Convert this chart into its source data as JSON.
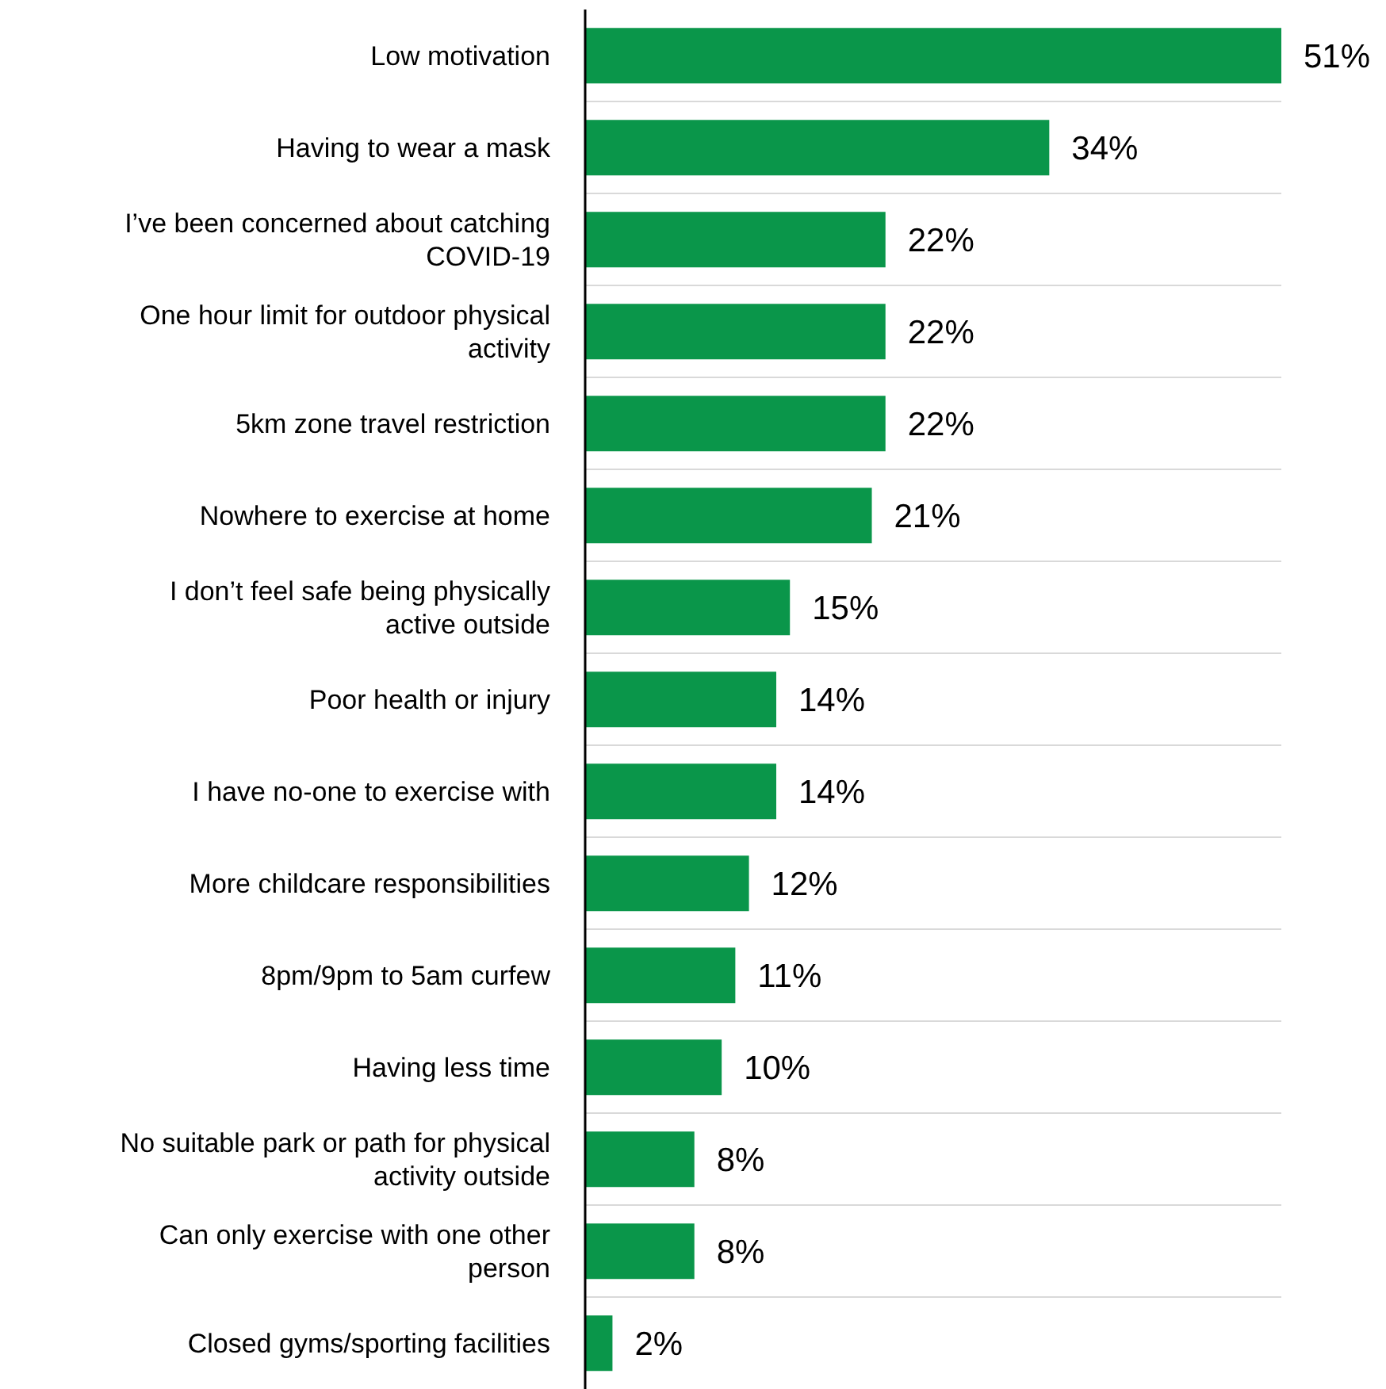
{
  "chart_data": {
    "type": "bar",
    "orientation": "horizontal",
    "categories": [
      "Low motivation",
      "Having to wear a mask",
      "I’ve been concerned about catching COVID-19",
      "One hour limit for outdoor physical activity",
      "5km zone travel restriction",
      "Nowhere to exercise at home",
      "I don’t feel safe being physically active outside",
      "Poor health or injury",
      "I have no-one to exercise with",
      "More childcare responsibilities",
      "8pm/9pm to 5am curfew",
      "Having less time",
      "No suitable park or path for physical activity outside",
      "Can only exercise with one other person",
      "Closed gyms/sporting facilities"
    ],
    "values": [
      51,
      34,
      22,
      22,
      22,
      21,
      15,
      14,
      14,
      12,
      11,
      10,
      8,
      8,
      2
    ],
    "value_labels": [
      "51%",
      "34%",
      "22%",
      "22%",
      "22%",
      "21%",
      "15%",
      "14%",
      "14%",
      "12%",
      "11%",
      "10%",
      "8%",
      "8%",
      "2%"
    ],
    "color": "#0a964a",
    "grid": "y"
  }
}
